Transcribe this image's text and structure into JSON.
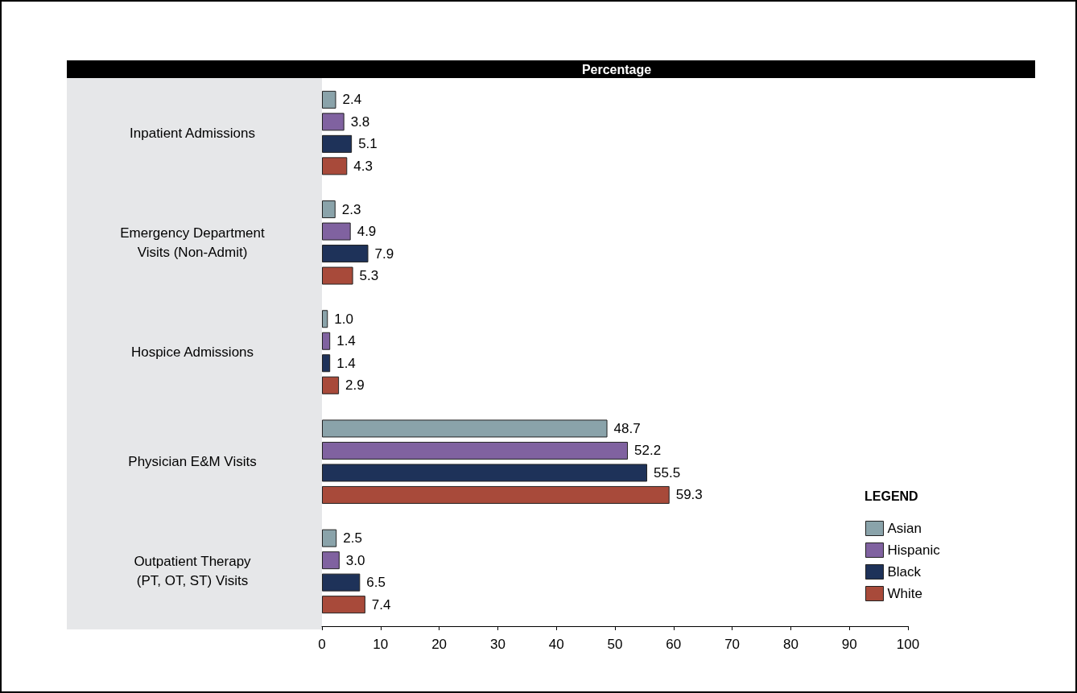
{
  "chart_data": {
    "type": "bar",
    "orientation": "horizontal",
    "title": "Percentage",
    "legend_title": "LEGEND",
    "categories": [
      "Inpatient Admissions",
      "Emergency Department\nVisits (Non-Admit)",
      "Hospice Admissions",
      "Physician E&M Visits",
      "Outpatient Therapy\n(PT, OT, ST) Visits"
    ],
    "series": [
      {
        "name": "Asian",
        "color": "#8aa3aa",
        "values": [
          2.4,
          2.3,
          1.0,
          48.7,
          2.5
        ],
        "value_labels": [
          "2.4",
          "2.3",
          "1.0",
          "48.7",
          "2.5"
        ]
      },
      {
        "name": "Hispanic",
        "color": "#8062a0",
        "values": [
          3.8,
          4.9,
          1.4,
          52.2,
          3.0
        ],
        "value_labels": [
          "3.8",
          "4.9",
          "1.4",
          "52.2",
          "3.0"
        ]
      },
      {
        "name": "Black",
        "color": "#1e3259",
        "values": [
          5.1,
          7.9,
          1.4,
          55.5,
          6.5
        ],
        "value_labels": [
          "5.1",
          "7.9",
          "1.4",
          "55.5",
          "6.5"
        ]
      },
      {
        "name": "White",
        "color": "#a84a3a",
        "values": [
          4.3,
          5.3,
          2.9,
          59.3,
          7.4
        ],
        "value_labels": [
          "4.3",
          "5.3",
          "2.9",
          "59.3",
          "7.4"
        ]
      }
    ],
    "xlim": [
      0,
      100
    ],
    "xticks": [
      0,
      10,
      20,
      30,
      40,
      50,
      60,
      70,
      80,
      90,
      100
    ],
    "legend": "bottom right",
    "grid": false
  }
}
